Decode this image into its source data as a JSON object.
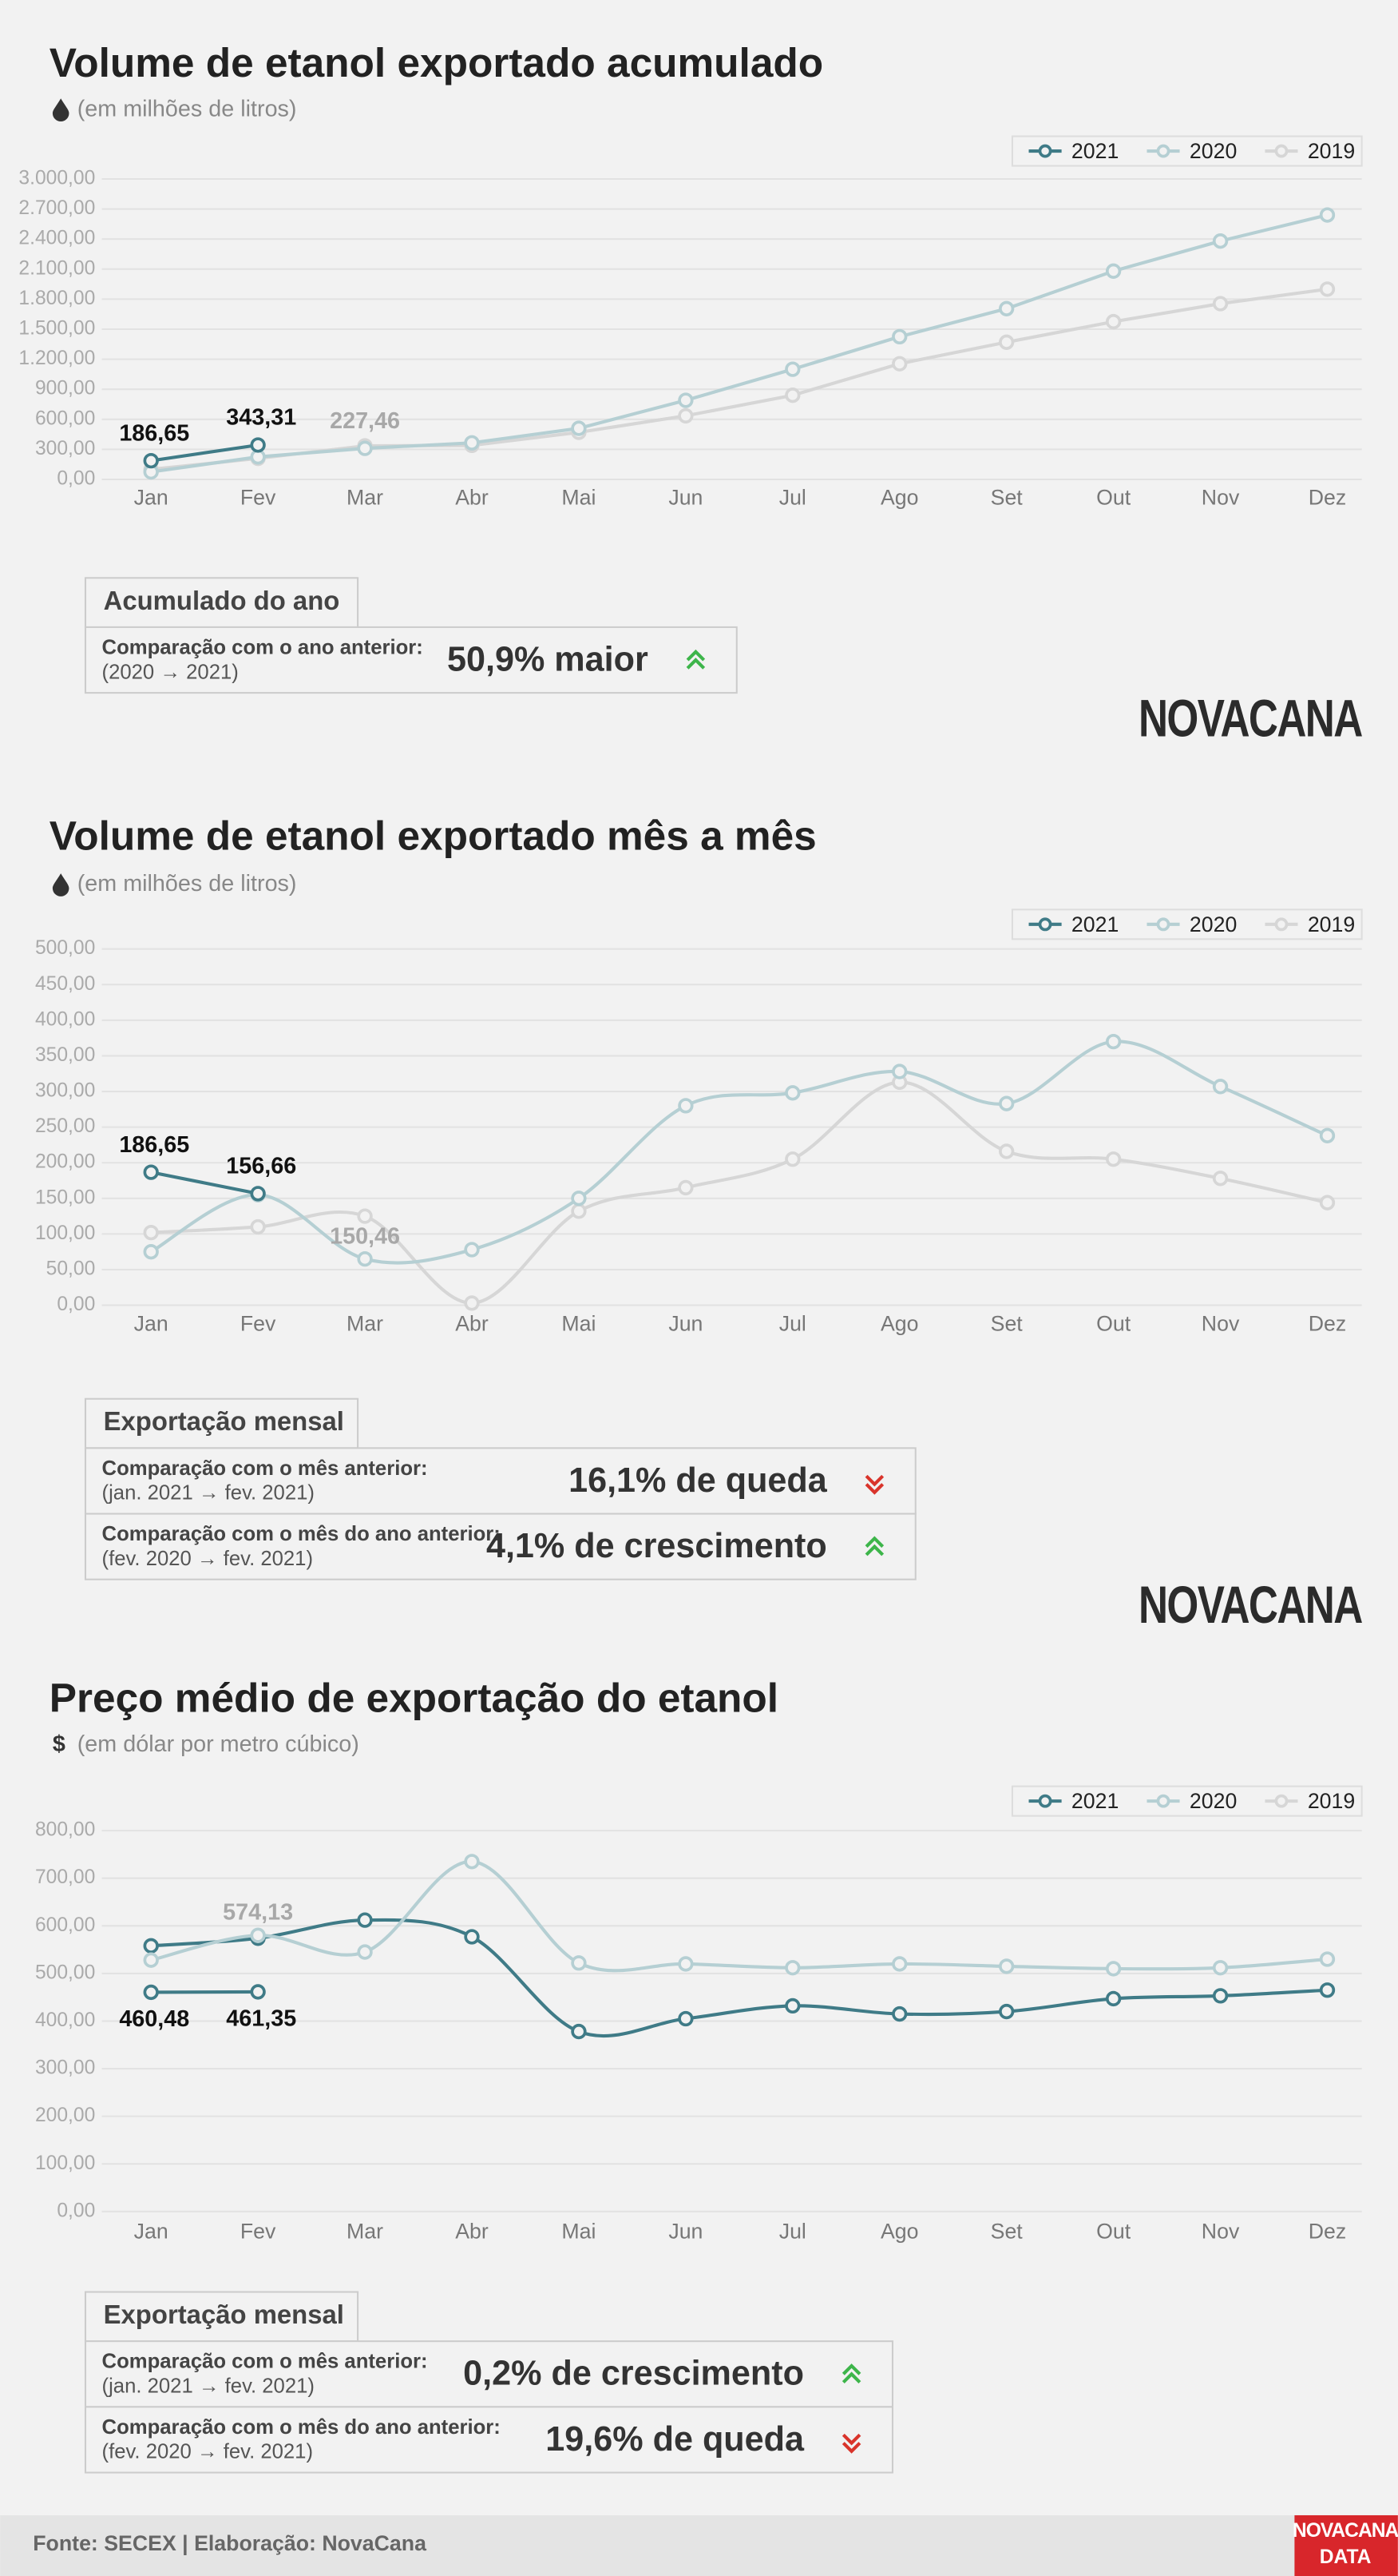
{
  "chart_data": [
    {
      "type": "line",
      "title": "Volume de etanol exportado acumulado",
      "subtitle": "(em milhões de litros)",
      "smooth": false,
      "grid": true,
      "legend": "top-right",
      "categories": [
        "Jan",
        "Fev",
        "Mar",
        "Abr",
        "Mai",
        "Jun",
        "Jul",
        "Ago",
        "Set",
        "Out",
        "Nov",
        "Dez"
      ],
      "ylim": [
        0,
        3000
      ],
      "yticks": [
        {
          "value": 0,
          "label": "0,00"
        },
        {
          "value": 300,
          "label": "300,00"
        },
        {
          "value": 600,
          "label": "600,00"
        },
        {
          "value": 900,
          "label": "900,00"
        },
        {
          "value": 1200,
          "label": "1.200,00"
        },
        {
          "value": 1500,
          "label": "1.500,00"
        },
        {
          "value": 1800,
          "label": "1.800,00"
        },
        {
          "value": 2100,
          "label": "2.100,00"
        },
        {
          "value": 2400,
          "label": "2.400,00"
        },
        {
          "value": 2700,
          "label": "2.700,00"
        },
        {
          "value": 3000,
          "label": "3.000,00"
        }
      ],
      "value_label_position": "above",
      "series": [
        {
          "name": "2021",
          "color": "#3f7b87",
          "values": [
            186.65,
            343.31,
            null,
            null,
            null,
            null,
            null,
            null,
            null,
            null,
            null,
            null
          ],
          "value_labels": [
            "186,65",
            "343,31",
            null,
            null,
            null,
            null,
            null,
            null,
            null,
            null,
            null,
            null
          ]
        },
        {
          "name": "2020",
          "color": "#b5cfd3",
          "values": [
            75,
            225,
            310,
            365,
            510,
            790,
            1100,
            1425,
            1705,
            2080,
            2380,
            2640
          ]
        },
        {
          "name": "2019",
          "color": "#d6d6d6",
          "values": [
            100,
            210,
            335,
            340,
            470,
            635,
            840,
            1155,
            1370,
            1575,
            1755,
            1900
          ]
        }
      ],
      "annotations": [
        {
          "text": "227,46",
          "category": 2
        }
      ],
      "summary": {
        "title": "Acumulado do ano",
        "rows": [
          {
            "label": "Comparação com o ano anterior:",
            "note": "(2020 → 2021)",
            "value": "50,9% maior",
            "trend": "up"
          }
        ]
      },
      "logo": "NOVACANA"
    },
    {
      "type": "line",
      "title": "Volume de etanol exportado mês a mês",
      "subtitle": "(em milhões de litros)",
      "smooth": true,
      "grid": true,
      "legend": "top-right",
      "categories": [
        "Jan",
        "Fev",
        "Mar",
        "Abr",
        "Mai",
        "Jun",
        "Jul",
        "Ago",
        "Set",
        "Out",
        "Nov",
        "Dez"
      ],
      "ylim": [
        0,
        500
      ],
      "yticks": [
        {
          "value": 0,
          "label": "0,00"
        },
        {
          "value": 50,
          "label": "50,00"
        },
        {
          "value": 100,
          "label": "100,00"
        },
        {
          "value": 150,
          "label": "150,00"
        },
        {
          "value": 200,
          "label": "200,00"
        },
        {
          "value": 250,
          "label": "250,00"
        },
        {
          "value": 300,
          "label": "300,00"
        },
        {
          "value": 350,
          "label": "350,00"
        },
        {
          "value": 400,
          "label": "400,00"
        },
        {
          "value": 450,
          "label": "450,00"
        },
        {
          "value": 500,
          "label": "500,00"
        }
      ],
      "value_label_position": "above",
      "series": [
        {
          "name": "2021",
          "color": "#3f7b87",
          "values": [
            186.65,
            156.66,
            null,
            null,
            null,
            null,
            null,
            null,
            null,
            null,
            null,
            null
          ],
          "value_labels": [
            "186,65",
            "156,66",
            null,
            null,
            null,
            null,
            null,
            null,
            null,
            null,
            null,
            null
          ]
        },
        {
          "name": "2020",
          "color": "#b5cfd3",
          "values": [
            75,
            155,
            65,
            78,
            150,
            280,
            298,
            328,
            283,
            370,
            307,
            238
          ]
        },
        {
          "name": "2019",
          "color": "#d6d6d6",
          "values": [
            102,
            110,
            125,
            3,
            132,
            165,
            205,
            313,
            216,
            205,
            178,
            144
          ]
        }
      ],
      "annotations": [
        {
          "text": "150,46",
          "category": 2
        }
      ],
      "summary": {
        "title": "Exportação mensal",
        "rows": [
          {
            "label": "Comparação com o mês anterior:",
            "note": "(jan. 2021 → fev. 2021)",
            "value": "16,1% de queda",
            "trend": "down"
          },
          {
            "label": "Comparação com o mês do ano anterior:",
            "note": "(fev. 2020 → fev. 2021)",
            "value": "4,1% de crescimento",
            "trend": "up"
          }
        ]
      },
      "logo": "NOVACANA"
    },
    {
      "type": "line",
      "title": "Preço médio de exportação do etanol",
      "subtitle": "(em dólar por metro cúbico)",
      "subtitle_symbol": "$",
      "smooth": true,
      "grid": true,
      "legend": "top-right",
      "categories": [
        "Jan",
        "Fev",
        "Mar",
        "Abr",
        "Mai",
        "Jun",
        "Jul",
        "Ago",
        "Set",
        "Out",
        "Nov",
        "Dez"
      ],
      "ylim": [
        0,
        800
      ],
      "yticks": [
        {
          "value": 0,
          "label": "0,00"
        },
        {
          "value": 100,
          "label": "100,00"
        },
        {
          "value": 200,
          "label": "200,00"
        },
        {
          "value": 300,
          "label": "300,00"
        },
        {
          "value": 400,
          "label": "400,00"
        },
        {
          "value": 500,
          "label": "500,00"
        },
        {
          "value": 600,
          "label": "600,00"
        },
        {
          "value": 700,
          "label": "700,00"
        },
        {
          "value": 800,
          "label": "800,00"
        }
      ],
      "value_label_position": "below",
      "series": [
        {
          "name": "2021",
          "color": "#3f7b87",
          "values": [
            460.48,
            461.35,
            null,
            null,
            null,
            null,
            null,
            null,
            null,
            null,
            null,
            null
          ],
          "value_labels": [
            "460,48",
            "461,35",
            null,
            null,
            null,
            null,
            null,
            null,
            null,
            null,
            null,
            null
          ]
        },
        {
          "name": "2020",
          "color": "#b5cfd3",
          "values": [
            528,
            580,
            545,
            735,
            522,
            520,
            512,
            520,
            515,
            510,
            512,
            530
          ]
        },
        {
          "name": "2019",
          "color": "#d6d6d6",
          "values": [
            null,
            null,
            null,
            null,
            null,
            null,
            null,
            null,
            null,
            null,
            null,
            null
          ]
        },
        {
          "color": "#3f7b87",
          "values": [
            558,
            574,
            612,
            577,
            378,
            405,
            432,
            415,
            420,
            447,
            453,
            465
          ]
        }
      ],
      "annotations": [
        {
          "text": "574,13",
          "category": 1
        }
      ],
      "summary": {
        "title": "Exportação mensal",
        "rows": [
          {
            "label": "Comparação com o mês anterior:",
            "note": "(jan. 2021 → fev. 2021)",
            "value": "0,2% de crescimento",
            "trend": "up"
          },
          {
            "label": "Comparação com o mês do ano anterior:",
            "note": "(fev. 2020 → fev. 2021)",
            "value": "19,6% de queda",
            "trend": "down"
          }
        ]
      }
    }
  ],
  "footer": {
    "source": "Fonte: SECEX | Elaboração: NovaCana",
    "badge": [
      "NOVACANA",
      "DATA"
    ]
  }
}
